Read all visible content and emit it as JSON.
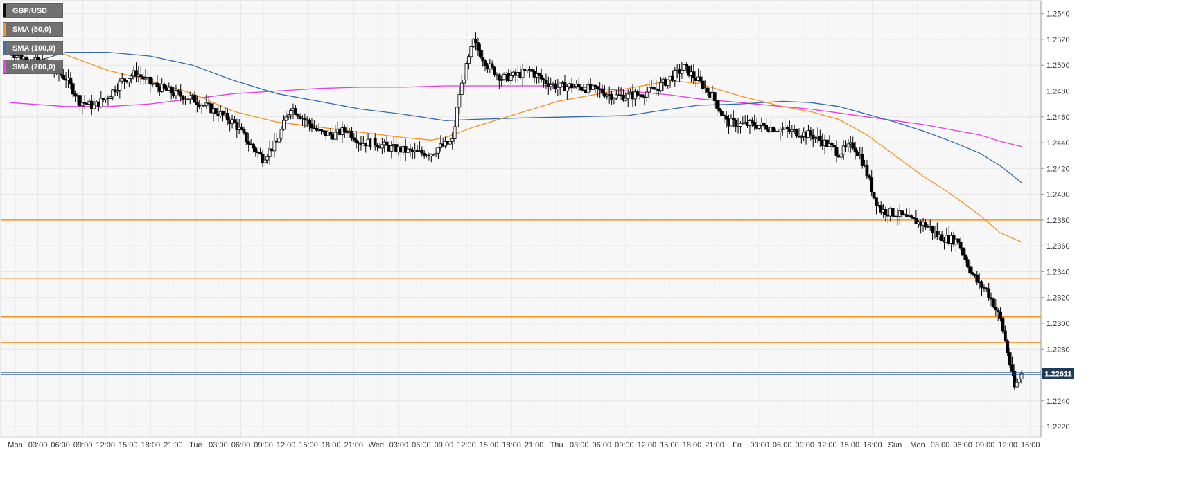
{
  "chart_data": {
    "type": "line",
    "title": "",
    "symbol": "GBP/USD",
    "colors": {
      "background": "#f7f7f7",
      "grid": "#e6e6e6",
      "axis_text": "#333333",
      "candle_up_fill": "#ffffff",
      "candle_down_fill": "#000000",
      "candle_outline": "#000000",
      "sma50": "#f5921e",
      "sma100": "#2f6ab0",
      "sma200": "#e040e0",
      "level_line": "#f5921e",
      "price_line": "#1f4e8c",
      "price_label_bg": "#1f3b5c"
    },
    "legend": [
      {
        "label": "GBP/USD",
        "color": "#000000"
      },
      {
        "label": "SMA (50,0)",
        "color": "#f5921e"
      },
      {
        "label": "SMA (100,0)",
        "color": "#2f6ab0"
      },
      {
        "label": "SMA (200,0)",
        "color": "#e040e0"
      }
    ],
    "ylim": [
      1.2212,
      1.255
    ],
    "y_ticks": [
      "1.2220",
      "1.2240",
      "1.2260",
      "1.2280",
      "1.2300",
      "1.2320",
      "1.2340",
      "1.2360",
      "1.2380",
      "1.2400",
      "1.2420",
      "1.2440",
      "1.2460",
      "1.2480",
      "1.2500",
      "1.2520",
      "1.2540"
    ],
    "x_ticks": [
      "Mon",
      "03:00",
      "06:00",
      "09:00",
      "12:00",
      "15:00",
      "18:00",
      "21:00",
      "Tue",
      "03:00",
      "06:00",
      "09:00",
      "12:00",
      "15:00",
      "18:00",
      "21:00",
      "Wed",
      "03:00",
      "06:00",
      "09:00",
      "12:00",
      "15:00",
      "18:00",
      "21:00",
      "Thu",
      "03:00",
      "06:00",
      "09:00",
      "12:00",
      "15:00",
      "18:00",
      "21:00",
      "Fri",
      "03:00",
      "06:00",
      "09:00",
      "12:00",
      "15:00",
      "18:00",
      "Sun",
      "Mon",
      "03:00",
      "06:00",
      "09:00",
      "12:00",
      "15:00"
    ],
    "horizontal_levels": [
      1.238,
      1.2335,
      1.2305,
      1.2285
    ],
    "current_price": 1.22611,
    "current_price_label": "1.22611",
    "price_path": [
      [
        0,
        1.251
      ],
      [
        3,
        1.2504
      ],
      [
        6,
        1.2497
      ],
      [
        8,
        1.249
      ],
      [
        10,
        1.2472
      ],
      [
        12,
        1.2468
      ],
      [
        14,
        1.2476
      ],
      [
        16,
        1.2488
      ],
      [
        18,
        1.2494
      ],
      [
        20,
        1.2486
      ],
      [
        22,
        1.2481
      ],
      [
        24,
        1.2477
      ],
      [
        26,
        1.2474
      ],
      [
        28,
        1.2468
      ],
      [
        30,
        1.2462
      ],
      [
        32,
        1.2455
      ],
      [
        34,
        1.244
      ],
      [
        36,
        1.2428
      ],
      [
        38,
        1.244
      ],
      [
        40,
        1.2468
      ],
      [
        42,
        1.2458
      ],
      [
        44,
        1.2448
      ],
      [
        46,
        1.2446
      ],
      [
        48,
        1.245
      ],
      [
        50,
        1.244
      ],
      [
        52,
        1.244
      ],
      [
        54,
        1.2436
      ],
      [
        56,
        1.2434
      ],
      [
        58,
        1.2432
      ],
      [
        60,
        1.2432
      ],
      [
        61,
        1.2436
      ],
      [
        62,
        1.2438
      ],
      [
        63,
        1.2441
      ],
      [
        64,
        1.2478
      ],
      [
        66,
        1.2518
      ],
      [
        68,
        1.25
      ],
      [
        70,
        1.249
      ],
      [
        72,
        1.2492
      ],
      [
        74,
        1.2496
      ],
      [
        76,
        1.2488
      ],
      [
        78,
        1.2483
      ],
      [
        80,
        1.2484
      ],
      [
        82,
        1.2482
      ],
      [
        84,
        1.248
      ],
      [
        86,
        1.2476
      ],
      [
        88,
        1.2476
      ],
      [
        90,
        1.2478
      ],
      [
        92,
        1.2482
      ],
      [
        94,
        1.249
      ],
      [
        96,
        1.2498
      ],
      [
        98,
        1.2488
      ],
      [
        100,
        1.2476
      ],
      [
        102,
        1.2456
      ],
      [
        104,
        1.2454
      ],
      [
        106,
        1.2454
      ],
      [
        108,
        1.2452
      ],
      [
        110,
        1.245
      ],
      [
        112,
        1.2448
      ],
      [
        114,
        1.2446
      ],
      [
        116,
        1.244
      ],
      [
        118,
        1.2432
      ],
      [
        119,
        1.2435
      ],
      [
        120,
        1.2438
      ],
      [
        121,
        1.243
      ],
      [
        122,
        1.2416
      ],
      [
        123,
        1.2398
      ],
      [
        124,
        1.2388
      ],
      [
        125,
        1.2386
      ],
      [
        126,
        1.2385
      ],
      [
        127,
        1.2383
      ],
      [
        128,
        1.238
      ],
      [
        129,
        1.2379
      ],
      [
        130,
        1.2377
      ],
      [
        131,
        1.2374
      ],
      [
        132,
        1.2368
      ],
      [
        133,
        1.2366
      ],
      [
        134,
        1.2365
      ],
      [
        135,
        1.2364
      ],
      [
        136,
        1.235
      ],
      [
        137,
        1.2338
      ],
      [
        138,
        1.233
      ],
      [
        139,
        1.2326
      ],
      [
        140,
        1.2315
      ],
      [
        141,
        1.2303
      ],
      [
        142,
        1.2278
      ],
      [
        143,
        1.225
      ],
      [
        144,
        1.2261
      ]
    ],
    "sma50": [
      [
        0,
        1.2514
      ],
      [
        8,
        1.2508
      ],
      [
        14,
        1.2496
      ],
      [
        20,
        1.2488
      ],
      [
        26,
        1.2478
      ],
      [
        32,
        1.2464
      ],
      [
        38,
        1.2456
      ],
      [
        44,
        1.2452
      ],
      [
        50,
        1.2448
      ],
      [
        56,
        1.2444
      ],
      [
        60,
        1.2442
      ],
      [
        62,
        1.2444
      ],
      [
        66,
        1.2452
      ],
      [
        72,
        1.2462
      ],
      [
        78,
        1.2472
      ],
      [
        84,
        1.2478
      ],
      [
        90,
        1.2484
      ],
      [
        94,
        1.2488
      ],
      [
        98,
        1.2486
      ],
      [
        104,
        1.2476
      ],
      [
        110,
        1.2468
      ],
      [
        114,
        1.2464
      ],
      [
        118,
        1.2458
      ],
      [
        122,
        1.2446
      ],
      [
        126,
        1.243
      ],
      [
        130,
        1.2414
      ],
      [
        134,
        1.24
      ],
      [
        138,
        1.2384
      ],
      [
        141,
        1.237
      ],
      [
        144,
        1.2363
      ]
    ],
    "sma100": [
      [
        0,
        1.2497
      ],
      [
        8,
        1.251
      ],
      [
        14,
        1.251
      ],
      [
        20,
        1.2507
      ],
      [
        26,
        1.25
      ],
      [
        32,
        1.2488
      ],
      [
        38,
        1.2478
      ],
      [
        44,
        1.2472
      ],
      [
        50,
        1.2466
      ],
      [
        56,
        1.2462
      ],
      [
        62,
        1.2457
      ],
      [
        66,
        1.2458
      ],
      [
        72,
        1.2459
      ],
      [
        80,
        1.246
      ],
      [
        88,
        1.2461
      ],
      [
        94,
        1.2466
      ],
      [
        98,
        1.2469
      ],
      [
        104,
        1.247
      ],
      [
        110,
        1.2472
      ],
      [
        114,
        1.2471
      ],
      [
        118,
        1.2468
      ],
      [
        122,
        1.2462
      ],
      [
        126,
        1.2456
      ],
      [
        130,
        1.2449
      ],
      [
        134,
        1.2441
      ],
      [
        138,
        1.2432
      ],
      [
        141,
        1.2422
      ],
      [
        144,
        1.2409
      ]
    ],
    "sma200": [
      [
        0,
        1.2471
      ],
      [
        8,
        1.2468
      ],
      [
        14,
        1.2468
      ],
      [
        20,
        1.247
      ],
      [
        26,
        1.2474
      ],
      [
        32,
        1.2478
      ],
      [
        38,
        1.248
      ],
      [
        44,
        1.2482
      ],
      [
        50,
        1.2483
      ],
      [
        56,
        1.2483
      ],
      [
        62,
        1.2484
      ],
      [
        70,
        1.2484
      ],
      [
        78,
        1.2484
      ],
      [
        84,
        1.2482
      ],
      [
        88,
        1.248
      ],
      [
        94,
        1.2477
      ],
      [
        98,
        1.2474
      ],
      [
        104,
        1.2471
      ],
      [
        110,
        1.2468
      ],
      [
        114,
        1.2466
      ],
      [
        118,
        1.2463
      ],
      [
        122,
        1.246
      ],
      [
        126,
        1.2457
      ],
      [
        130,
        1.2454
      ],
      [
        134,
        1.245
      ],
      [
        138,
        1.2446
      ],
      [
        141,
        1.2441
      ],
      [
        144,
        1.2437
      ]
    ]
  }
}
